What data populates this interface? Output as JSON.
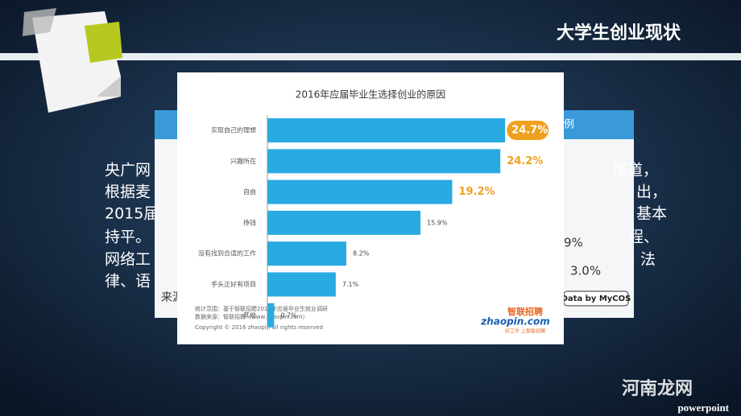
{
  "slide": {
    "title": "大学生创业现状",
    "body_fragments": [
      "央广网",
      "报道，",
      "根据麦",
      "出，",
      "2015届",
      "基本",
      "持平。",
      "9%",
      "程、",
      "网络工",
      "3.0%",
      "法",
      "律、语",
      "来源",
      "例"
    ],
    "badge": "Data by MyCOS",
    "watermark": "河南龙网",
    "brand": "powerpoint"
  },
  "chart_data": {
    "type": "bar",
    "orientation": "horizontal",
    "title": "2016年应届毕业生选择创业的原因",
    "categories": [
      "实现自己的理想",
      "兴趣所在",
      "自由",
      "挣钱",
      "没有找到合适的工作",
      "手头正好有项目",
      "其他"
    ],
    "values": [
      24.7,
      24.2,
      19.2,
      15.9,
      8.2,
      7.1,
      0.7
    ],
    "value_labels": [
      "24.7%",
      "24.2%",
      "19.2%",
      "15.9%",
      "8.2%",
      "7.1%",
      "0.7%"
    ],
    "value_label_colors": [
      "#ffffff",
      "#f0a020",
      "#f0a020",
      "#444444",
      "#444444",
      "#444444",
      "#444444"
    ],
    "color": "#29abe2",
    "notes": [
      "统计范围：基于智联招聘2016年应届毕业生就业调研",
      "数据来源：智联招聘（www.zhaopin.com）"
    ],
    "copyright": "Copyright © 2016 zhaopin all rights reserved",
    "logo": [
      "智联招聘",
      "zhaopin.com",
      "好工作 上智联招聘"
    ]
  }
}
